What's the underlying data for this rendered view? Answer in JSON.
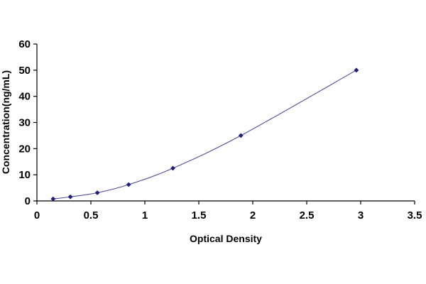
{
  "chart_data": {
    "type": "scatter",
    "title": "",
    "xlabel": "Optical Density",
    "ylabel": "Concentration(ng/mL)",
    "xlim": [
      0,
      3.5
    ],
    "ylim": [
      0,
      60
    ],
    "xticks": [
      "0",
      "0.5",
      "1",
      "1.5",
      "2",
      "2.5",
      "3",
      "3.5"
    ],
    "yticks": [
      "0",
      "10",
      "20",
      "30",
      "40",
      "50",
      "60"
    ],
    "grid": false,
    "legend": "none",
    "series": [
      {
        "x": [
          0.15,
          0.31,
          0.56,
          0.85,
          1.26,
          1.89,
          2.96
        ],
        "y": [
          0.78,
          1.56,
          3.12,
          6.25,
          12.5,
          25,
          50
        ],
        "marker": "diamond",
        "trendline": "smooth curve"
      }
    ],
    "colors": {
      "marker": "#1f1f7a",
      "curve": "#4f4f9e",
      "axis": "#000000"
    }
  }
}
